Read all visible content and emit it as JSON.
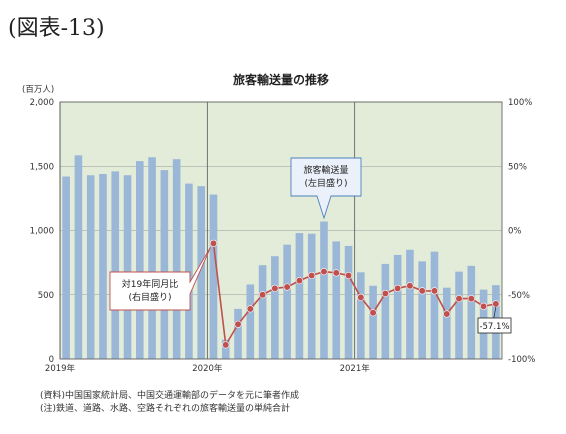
{
  "figure_label": "(図表-13)",
  "notes": [
    "(資料)中国国家統計局、中国交通運輸部のデータを元に筆者作成",
    "(注)鉄道、道路、水路、空路それぞれの旅客輸送量の単純合計"
  ],
  "colors": {
    "bar": "#9bb7d8",
    "line": "#c0504d",
    "plot_bg": "#e2ecd9",
    "callout_fill": "#eaf1fb",
    "callout_stroke": "#4f81bd"
  },
  "chart_data": {
    "type": "bar",
    "title": "旅客輸送量の推移",
    "y_unit_label": "(百万人)",
    "x_tick_labels": [
      {
        "index": 0,
        "label": "2019年"
      },
      {
        "index": 12,
        "label": "2020年"
      },
      {
        "index": 24,
        "label": "2021年"
      }
    ],
    "y_left": {
      "range": [
        0,
        2000
      ],
      "ticks": [
        0,
        500,
        1000,
        1500,
        2000
      ],
      "tick_labels": [
        "0",
        "500",
        "1,000",
        "1,500",
        "2,000"
      ]
    },
    "y_right": {
      "range": [
        -100,
        100
      ],
      "ticks": [
        -100,
        -50,
        0,
        50,
        100
      ],
      "tick_labels": [
        "-100%",
        "-50%",
        "0%",
        "50%",
        "100%"
      ]
    },
    "grid": true,
    "series": [
      {
        "name": "旅客輸送量(左目盛り)",
        "axis": "left",
        "type": "bar",
        "values": [
          1420,
          1585,
          1430,
          1440,
          1460,
          1430,
          1540,
          1570,
          1470,
          1555,
          1365,
          1345,
          1280,
          150,
          390,
          580,
          730,
          800,
          890,
          980,
          975,
          1070,
          915,
          880,
          675,
          570,
          740,
          810,
          850,
          760,
          835,
          555,
          680,
          725,
          540,
          575
        ]
      },
      {
        "name": "対19年同月比(右目盛り)",
        "axis": "right",
        "type": "line",
        "start_index": 12,
        "values": [
          -10,
          -89,
          -73,
          -61,
          -50,
          -45,
          -44,
          -39,
          -35,
          -32,
          -33,
          -35,
          -52,
          -64,
          -49,
          -45,
          -43,
          -47,
          -47,
          -65,
          -53,
          -53,
          -59,
          -57.1
        ]
      }
    ],
    "annotations": [
      {
        "text_lines": [
          "旅客輸送量",
          "(左目盛り)"
        ],
        "target_series": 0
      },
      {
        "text_lines": [
          "対19年同月比",
          "(右目盛り)"
        ],
        "target_series": 1
      },
      {
        "text": "-57.1%",
        "target": "last_point"
      }
    ]
  }
}
